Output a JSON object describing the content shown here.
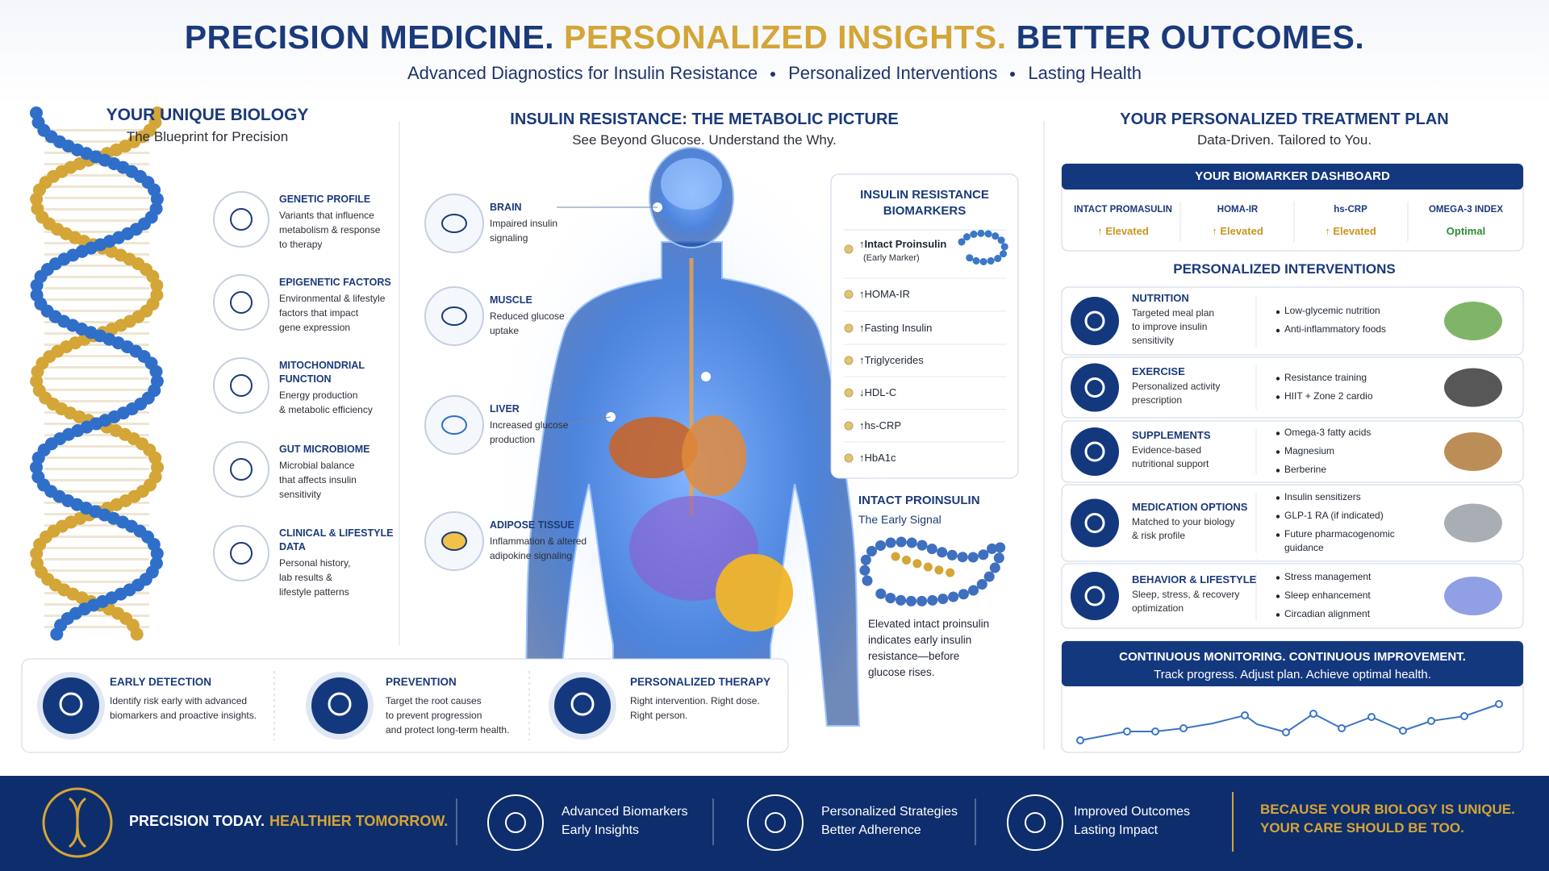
{
  "header": {
    "title": [
      "PRECISION MEDICINE.",
      "PERSONALIZED INSIGHTS.",
      "BETTER OUTCOMES."
    ],
    "subtitle": [
      "Advanced Diagnostics for Insulin Resistance",
      "Personalized Interventions",
      "Lasting Health"
    ]
  },
  "biology": {
    "title": "YOUR UNIQUE BIOLOGY",
    "subtitle": "The Blueprint for Precision",
    "items": [
      {
        "title": [
          "GENETIC PROFILE"
        ],
        "text": [
          "Variants that influence",
          "metabolism & response",
          "to therapy"
        ]
      },
      {
        "title": [
          "EPIGENETIC FACTORS"
        ],
        "text": [
          "Environmental & lifestyle",
          "factors that impact",
          "gene expression"
        ]
      },
      {
        "title": [
          "MITOCHONDRIAL",
          "FUNCTION"
        ],
        "text": [
          "Energy production",
          "& metabolic efficiency"
        ]
      },
      {
        "title": [
          "GUT MICROBIOME"
        ],
        "text": [
          "Microbial balance",
          "that affects insulin",
          "sensitivity"
        ]
      },
      {
        "title": [
          "CLINICAL & LIFESTYLE",
          "DATA"
        ],
        "text": [
          "Personal history,",
          "lab results &",
          "lifestyle patterns"
        ]
      }
    ]
  },
  "metabolic": {
    "title": "INSULIN RESISTANCE: THE METABOLIC PICTURE",
    "subtitle": "See Beyond Glucose. Understand the Why.",
    "organs": [
      {
        "title": "BRAIN",
        "text": [
          "Impaired insulin",
          "signaling"
        ]
      },
      {
        "title": "MUSCLE",
        "text": [
          "Reduced glucose",
          "uptake"
        ]
      },
      {
        "title": "LIVER",
        "text": [
          "Increased glucose",
          "production"
        ]
      },
      {
        "title": "ADIPOSE TISSUE",
        "text": [
          "Inflammation & altered",
          "adipokine signaling"
        ]
      }
    ]
  },
  "biomarkers": {
    "title": [
      "INSULIN RESISTANCE",
      "BIOMARKERS"
    ],
    "items": [
      "↑Intact Proinsulin",
      "↑HOMA-IR",
      "↑Fasting Insulin",
      "↑Triglycerides",
      "↓HDL-C",
      "↑hs-CRP",
      "↑HbA1c"
    ],
    "note": "(Early Marker)"
  },
  "proinsulin": {
    "title": "INTACT PROINSULIN",
    "subtitle": "The Early Signal",
    "text": [
      "Elevated intact proinsulin",
      "indicates early insulin",
      "resistance—before",
      "glucose rises."
    ]
  },
  "benefits": [
    {
      "title": "EARLY DETECTION",
      "text": [
        "Identify risk early with advanced",
        "biomarkers and proactive insights."
      ]
    },
    {
      "title": "PREVENTION",
      "text": [
        "Target the root causes",
        "to prevent progression",
        "and protect long-term health."
      ]
    },
    {
      "title": "PERSONALIZED THERAPY",
      "text": [
        "Right intervention. Right dose.",
        "Right person."
      ]
    }
  ],
  "plan": {
    "title": "YOUR PERSONALIZED TREATMENT PLAN",
    "subtitle": "Data-Driven. Tailored to You.",
    "dashboard": {
      "title": "YOUR BIOMARKER DASHBOARD",
      "items": [
        {
          "name": "INTACT PROMASULIN",
          "status": "↑ Elevated",
          "color": "#c8941f"
        },
        {
          "name": "HOMA-IR",
          "status": "↑ Elevated",
          "color": "#c8941f"
        },
        {
          "name": "hs-CRP",
          "status": "↑ Elevated",
          "color": "#c8941f"
        },
        {
          "name": "OMEGA-3 INDEX",
          "status": "Optimal",
          "color": "#2e8b3a"
        }
      ]
    },
    "interventions_title": "PERSONALIZED INTERVENTIONS",
    "interventions": [
      {
        "title": "NUTRITION",
        "text": [
          "Targeted meal plan",
          "to improve insulin",
          "sensitivity"
        ],
        "bullets": [
          [
            "Low-glycemic nutrition"
          ],
          [
            "Anti-inflammatory foods"
          ]
        ]
      },
      {
        "title": "EXERCISE",
        "text": [
          "Personalized activity",
          "prescription"
        ],
        "bullets": [
          [
            "Resistance training"
          ],
          [
            "HIIT + Zone 2 cardio"
          ]
        ]
      },
      {
        "title": "SUPPLEMENTS",
        "text": [
          "Evidence-based",
          "nutritional support"
        ],
        "bullets": [
          [
            "Omega-3 fatty acids"
          ],
          [
            "Magnesium"
          ],
          [
            "Berberine"
          ]
        ]
      },
      {
        "title": "MEDICATION OPTIONS",
        "text": [
          "Matched to your biology",
          "& risk profile"
        ],
        "bullets": [
          [
            "Insulin sensitizers"
          ],
          [
            "GLP-1 RA (if indicated)"
          ],
          [
            "Future pharmacogenomic",
            "guidance"
          ]
        ]
      },
      {
        "title": "BEHAVIOR & LIFESTYLE",
        "text": [
          "Sleep, stress, & recovery",
          "optimization"
        ],
        "bullets": [
          [
            "Stress management"
          ],
          [
            "Sleep enhancement"
          ],
          [
            "Circadian alignment"
          ]
        ]
      }
    ],
    "monitoring": {
      "title": "CONTINUOUS MONITORING. CONTINUOUS IMPROVEMENT.",
      "subtitle": "Track progress. Adjust plan. Achieve optimal health."
    }
  },
  "footer": {
    "tagline": [
      "PRECISION TODAY.",
      "HEALTHIER TOMORROW."
    ],
    "features": [
      [
        "Advanced Biomarkers",
        "Early Insights"
      ],
      [
        "Personalized Strategies",
        "Better Adherence"
      ],
      [
        "Improved Outcomes",
        "Lasting Impact"
      ]
    ],
    "closing": [
      "BECAUSE YOUR BIOLOGY IS UNIQUE.",
      "YOUR CARE SHOULD BE TOO."
    ]
  }
}
